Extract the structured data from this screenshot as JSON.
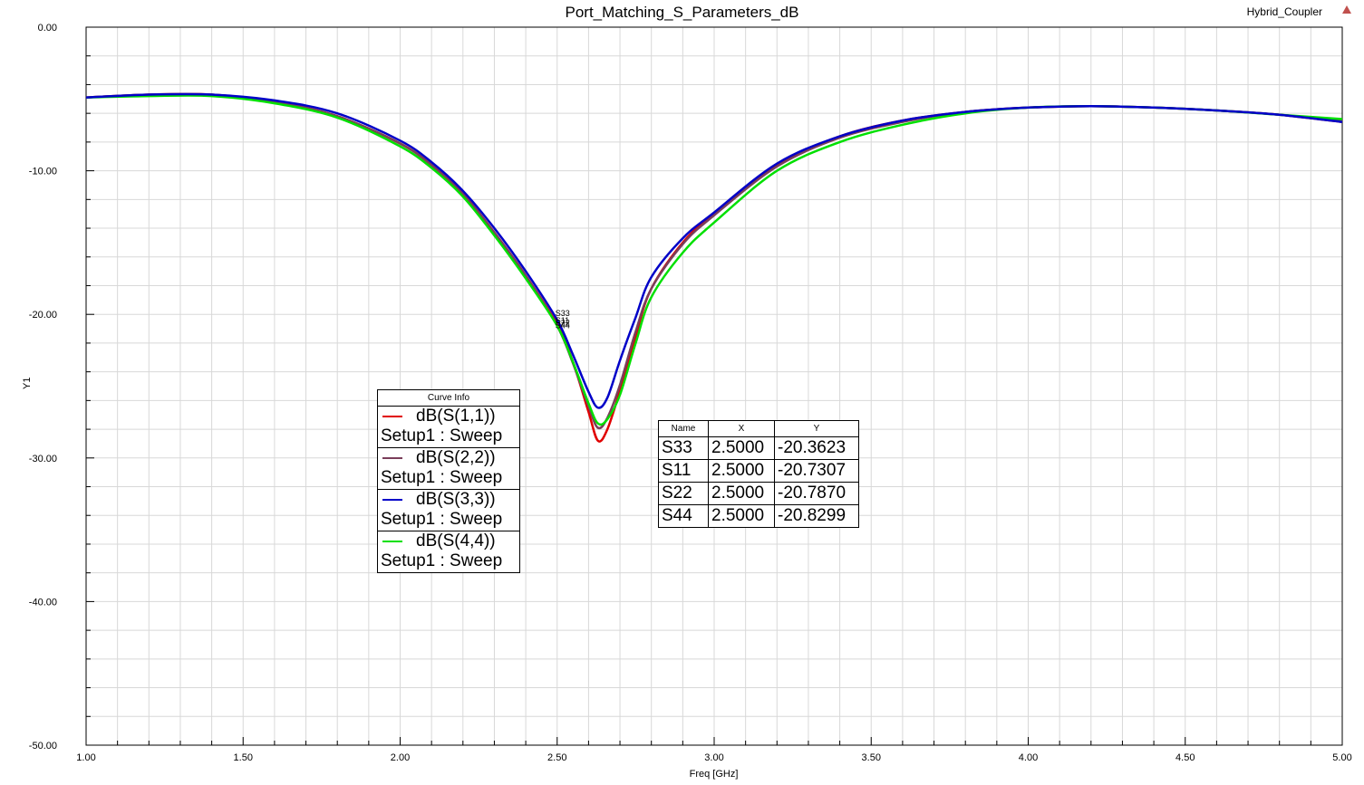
{
  "window": {
    "title": "Port_Matching_S_Parameters_dB",
    "project": "Hybrid_Coupler"
  },
  "legend": {
    "header": "Curve Info",
    "entries": [
      {
        "expr": "dB(S(1,1))",
        "setup": "Setup1 : Sweep",
        "color": "#e00000"
      },
      {
        "expr": "dB(S(2,2))",
        "setup": "Setup1 : Sweep",
        "color": "#7a3e5a"
      },
      {
        "expr": "dB(S(3,3))",
        "setup": "Setup1 : Sweep",
        "color": "#0000c8"
      },
      {
        "expr": "dB(S(4,4))",
        "setup": "Setup1 : Sweep",
        "color": "#00e000"
      }
    ]
  },
  "markers": {
    "headers": [
      "Name",
      "X",
      "Y"
    ],
    "rows": [
      {
        "name": "S33",
        "x": "2.5000",
        "y": "-20.3623"
      },
      {
        "name": "S11",
        "x": "2.5000",
        "y": "-20.7307"
      },
      {
        "name": "S22",
        "x": "2.5000",
        "y": "-20.7870"
      },
      {
        "name": "S44",
        "x": "2.5000",
        "y": "-20.8299"
      }
    ],
    "plot_labels": [
      "S33",
      "S11",
      "S22",
      "S44"
    ]
  },
  "chart_data": {
    "type": "line",
    "title": "Port_Matching_S_Parameters_dB",
    "xlabel": "Freq [GHz]",
    "ylabel": "Y1",
    "xlim": [
      1.0,
      5.0
    ],
    "ylim": [
      -50.0,
      0.0
    ],
    "x_ticks": [
      "1.00",
      "1.50",
      "2.00",
      "2.50",
      "3.00",
      "3.50",
      "4.00",
      "4.50",
      "5.00"
    ],
    "y_ticks": [
      "0.00",
      "-10.00",
      "-20.00",
      "-30.00",
      "-40.00",
      "-50.00"
    ],
    "grid": true,
    "x": [
      1.0,
      1.2,
      1.4,
      1.6,
      1.8,
      2.0,
      2.1,
      2.2,
      2.3,
      2.4,
      2.5,
      2.55,
      2.6,
      2.63,
      2.66,
      2.7,
      2.75,
      2.8,
      2.9,
      3.0,
      3.2,
      3.4,
      3.6,
      3.8,
      4.0,
      4.2,
      4.4,
      4.6,
      4.8,
      5.0
    ],
    "series": [
      {
        "name": "dB(S(1,1))",
        "color": "#e00000",
        "values": [
          -4.9,
          -4.7,
          -4.7,
          -5.2,
          -6.2,
          -8.1,
          -9.6,
          -11.6,
          -14.3,
          -17.3,
          -20.7,
          -23.3,
          -26.8,
          -28.8,
          -28.0,
          -25.3,
          -21.5,
          -18.2,
          -15.0,
          -13.0,
          -9.6,
          -7.6,
          -6.5,
          -5.9,
          -5.6,
          -5.5,
          -5.6,
          -5.8,
          -6.1,
          -6.6
        ]
      },
      {
        "name": "dB(S(2,2))",
        "color": "#7a3e5a",
        "values": [
          -4.9,
          -4.7,
          -4.7,
          -5.2,
          -6.2,
          -8.1,
          -9.6,
          -11.6,
          -14.3,
          -17.3,
          -20.8,
          -23.4,
          -26.4,
          -27.9,
          -27.2,
          -24.9,
          -21.2,
          -18.2,
          -15.1,
          -13.1,
          -9.7,
          -7.7,
          -6.6,
          -5.9,
          -5.6,
          -5.5,
          -5.6,
          -5.8,
          -6.1,
          -6.5
        ]
      },
      {
        "name": "dB(S(3,3))",
        "color": "#0000c8",
        "values": [
          -4.9,
          -4.7,
          -4.7,
          -5.1,
          -6.0,
          -7.9,
          -9.4,
          -11.4,
          -14.0,
          -17.0,
          -20.4,
          -22.8,
          -25.4,
          -26.5,
          -25.8,
          -23.2,
          -20.2,
          -17.4,
          -14.7,
          -12.9,
          -9.5,
          -7.6,
          -6.5,
          -5.9,
          -5.6,
          -5.5,
          -5.6,
          -5.8,
          -6.1,
          -6.6
        ]
      },
      {
        "name": "dB(S(4,4))",
        "color": "#00e000",
        "values": [
          -4.9,
          -4.8,
          -4.8,
          -5.3,
          -6.3,
          -8.3,
          -9.8,
          -11.8,
          -14.5,
          -17.5,
          -20.8,
          -23.3,
          -26.2,
          -27.6,
          -27.3,
          -25.6,
          -22.0,
          -18.8,
          -15.7,
          -13.6,
          -10.0,
          -8.0,
          -6.8,
          -6.0,
          -5.6,
          -5.5,
          -5.6,
          -5.8,
          -6.1,
          -6.4
        ]
      }
    ]
  }
}
